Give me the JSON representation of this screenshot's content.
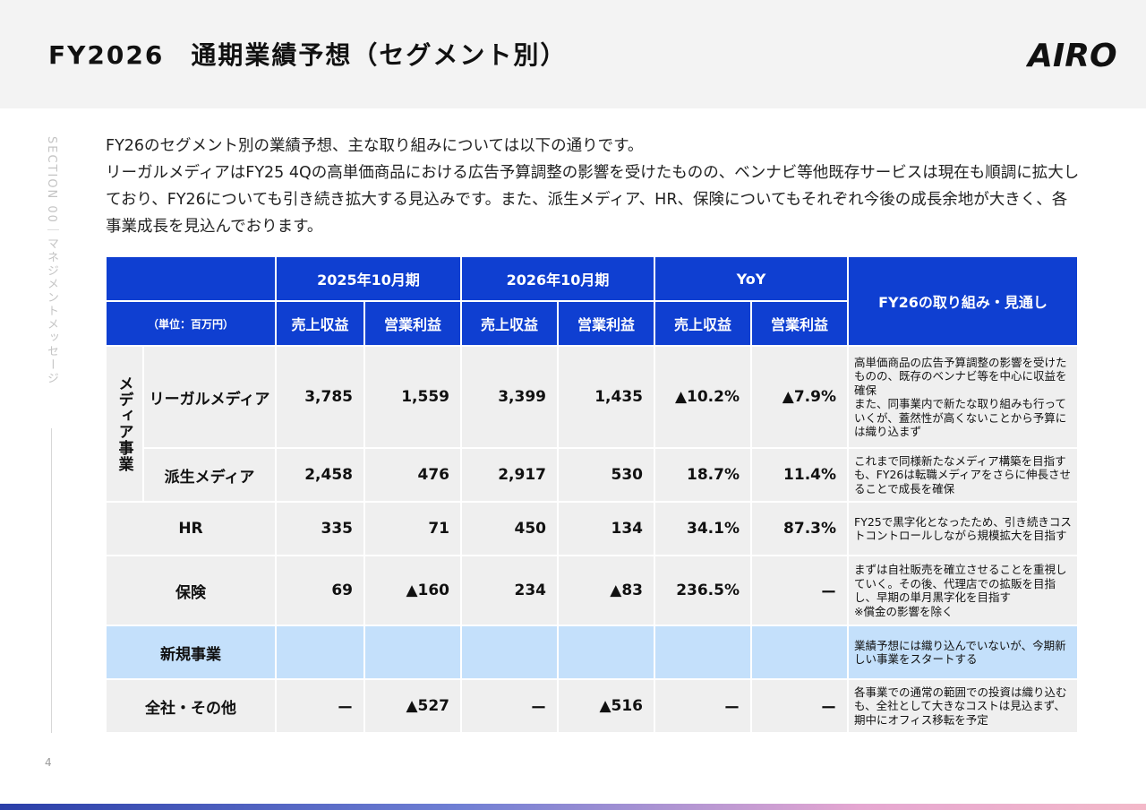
{
  "title": "FY2026　通期業績予想（セグメント別）",
  "logo_text": "AIRO",
  "side_label": "SECTION 00｜マネジメントメッセージ",
  "page_number": "4",
  "intro": [
    "FY26のセグメント別の業績予想、主な取り組みについては以下の通りです。",
    "リーガルメディアはFY25 4Qの高単価商品における広告予算調整の影響を受けたものの、ベンナビ等他既存サービスは現在も順調に拡大しており、FY26についても引き続き拡大する見込みです。また、派生メディア、HR、保険についてもそれぞれ今後の成長余地が大きく、各事業成長を見込んでおります。"
  ],
  "table": {
    "unit": "（単位：百万円）",
    "periods": [
      "2025年10月期",
      "2026年10月期",
      "YoY"
    ],
    "metric_revenue": "売上収益",
    "metric_profit": "営業利益",
    "outlook_header": "FY26の取り組み・見通し",
    "media_group": "メディア事業",
    "rows": [
      {
        "name": "リーガルメディア",
        "values": [
          "3,785",
          "1,559",
          "3,399",
          "1,435",
          "▲10.2%",
          "▲7.9%"
        ],
        "note": "高単価商品の広告予算調整の影響を受けたものの、既存のベンナビ等を中心に収益を確保\nまた、同事業内で新たな取り組みも行っていくが、蓋然性が高くないことから予算には織り込まず"
      },
      {
        "name": "派生メディア",
        "values": [
          "2,458",
          "476",
          "2,917",
          "530",
          "18.7%",
          "11.4%"
        ],
        "note": "これまで同様新たなメディア構築を目指すも、FY26は転職メディアをさらに伸長させることで成長を確保"
      },
      {
        "name": "HR",
        "values": [
          "335",
          "71",
          "450",
          "134",
          "34.1%",
          "87.3%"
        ],
        "note": "FY25で黒字化となったため、引き続きコストコントロールしながら規模拡大を目指す"
      },
      {
        "name": "保険",
        "values": [
          "69",
          "▲160",
          "234",
          "▲83",
          "236.5%",
          "ー"
        ],
        "note": "まずは自社販売を確立させることを重視していく。その後、代理店での拡販を目指し、早期の単月黒字化を目指す\n※償金の影響を除く"
      },
      {
        "name": "新規事業",
        "values": [
          "",
          "",
          "",
          "",
          "",
          ""
        ],
        "note": "業績予想には織り込んでいないが、今期新しい事業をスタートする"
      },
      {
        "name": "全社・その他",
        "values": [
          "ー",
          "▲527",
          "ー",
          "▲516",
          "ー",
          "ー"
        ],
        "note": "各事業での通常の範囲での投資は織り込むも、全社として大きなコストは見込まず、期中にオフィス移転を予定"
      }
    ]
  },
  "colors": {
    "header_blue": "#0f3fd1",
    "row_grey": "#efefef",
    "new_biz_blue": "#c4e0fb"
  }
}
